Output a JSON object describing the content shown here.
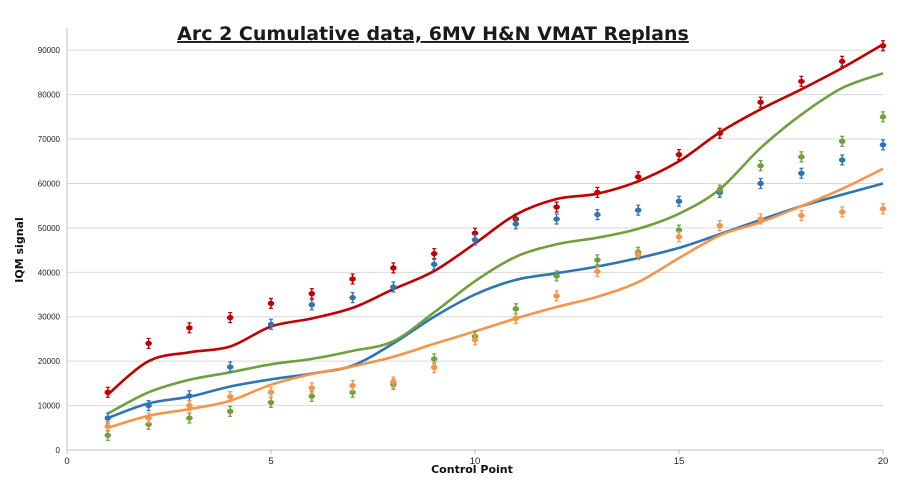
{
  "chart_data": {
    "type": "scatter",
    "title": "Arc 2 Cumulative data, 6MV H&N VMAT Replans",
    "xlabel": "Control Point",
    "ylabel": "IQM signal",
    "xlim": [
      0,
      20
    ],
    "ylim": [
      0,
      95000
    ],
    "x_ticks": [
      0,
      5,
      10,
      15,
      20
    ],
    "y_ticks": [
      0,
      10000,
      20000,
      30000,
      40000,
      50000,
      60000,
      70000,
      80000,
      90000
    ],
    "grid": true,
    "legend": "none",
    "x": [
      1,
      2,
      3,
      4,
      5,
      6,
      7,
      8,
      9,
      10,
      11,
      12,
      13,
      14,
      15,
      16,
      17,
      18,
      19,
      20
    ],
    "series": [
      {
        "color": "#c00000",
        "points": [
          13000,
          24000,
          27500,
          29800,
          33000,
          35200,
          38500,
          41000,
          44200,
          48800,
          52000,
          54700,
          58000,
          61500,
          66500,
          71300,
          78300,
          83000,
          87500,
          91000
        ],
        "curve": [
          12500,
          20000,
          22000,
          23300,
          27800,
          29600,
          32000,
          36200,
          40300,
          46500,
          53000,
          56500,
          57700,
          60500,
          65000,
          71500,
          76700,
          81200,
          86000,
          91300
        ]
      },
      {
        "color": "#2e75b6",
        "points": [
          7200,
          10000,
          12200,
          18700,
          28300,
          32700,
          34300,
          36700,
          41800,
          47300,
          50900,
          52000,
          53000,
          54000,
          56000,
          58000,
          60000,
          62300,
          65300,
          68700
        ],
        "curve": [
          7200,
          10500,
          12000,
          14300,
          15900,
          17200,
          19000,
          24000,
          30000,
          35000,
          38300,
          39800,
          41300,
          43200,
          45500,
          48600,
          51800,
          54900,
          57500,
          60000
        ]
      },
      {
        "color": "#70a03c",
        "points": [
          3300,
          5800,
          7200,
          8700,
          10700,
          12100,
          13000,
          14800,
          20500,
          25600,
          31800,
          39200,
          42800,
          44500,
          49500,
          58500,
          64000,
          66000,
          69500,
          75000
        ],
        "curve": [
          8200,
          13000,
          15800,
          17500,
          19300,
          20500,
          22300,
          24500,
          31000,
          38000,
          43500,
          46300,
          47800,
          49800,
          53200,
          58700,
          68000,
          75500,
          81500,
          84800
        ]
      },
      {
        "color": "#f4964a",
        "points": [
          5300,
          7200,
          10000,
          12000,
          13000,
          14000,
          14500,
          15300,
          18600,
          24800,
          29600,
          34700,
          40200,
          44000,
          48000,
          50500,
          52000,
          52800,
          53600,
          54300
        ],
        "curve": [
          5000,
          7700,
          9200,
          11100,
          14700,
          17100,
          18800,
          21000,
          23900,
          26700,
          29600,
          32200,
          34500,
          37800,
          43200,
          48300,
          51300,
          54900,
          58800,
          63300
        ]
      }
    ]
  }
}
